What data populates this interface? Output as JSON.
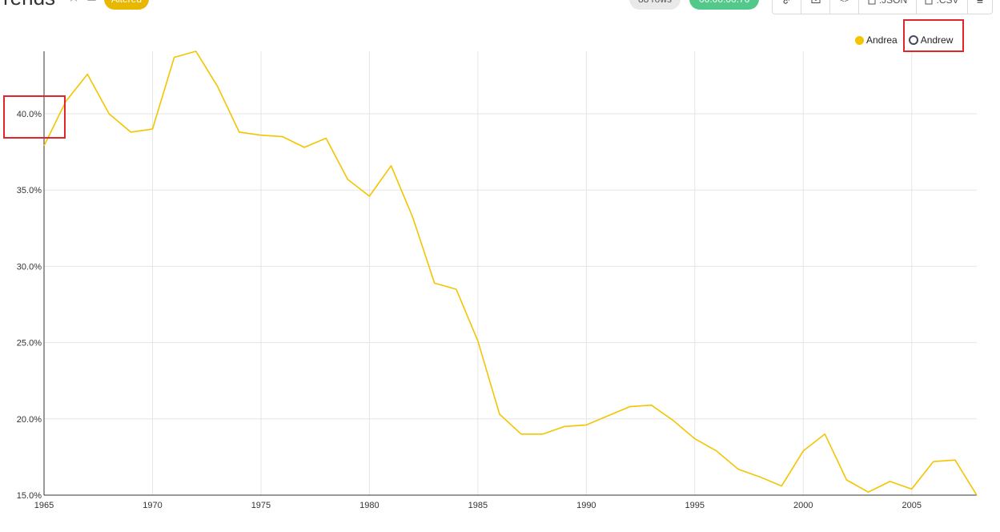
{
  "header": {
    "title": "rends",
    "altered_label": "Altered",
    "rows_label": "88 rows",
    "time_label": "00:00:00.70",
    "toolbar": [
      {
        "icon": "link-icon",
        "label": ""
      },
      {
        "icon": "mail-icon",
        "label": ""
      },
      {
        "icon": "code-icon",
        "label": ""
      },
      {
        "icon": "json-file-icon",
        "label": ".JSON"
      },
      {
        "icon": "csv-file-icon",
        "label": ".CSV"
      },
      {
        "icon": "menu-icon",
        "label": ""
      }
    ]
  },
  "legend": [
    {
      "name": "Andrea",
      "color": "#f4c400",
      "active": true
    },
    {
      "name": "Andrew",
      "color": "#45485a",
      "active": false
    }
  ],
  "chart_data": {
    "type": "line",
    "series": [
      {
        "name": "Andrea",
        "color": "#f4c400",
        "x": [
          1965,
          1966,
          1967,
          1968,
          1969,
          1970,
          1971,
          1972,
          1973,
          1974,
          1975,
          1976,
          1977,
          1978,
          1979,
          1980,
          1981,
          1982,
          1983,
          1984,
          1985,
          1986,
          1987,
          1988,
          1989,
          1990,
          1991,
          1992,
          1993,
          1994,
          1995,
          1996,
          1997,
          1998,
          1999,
          2000,
          2001,
          2002,
          2003,
          2004,
          2005,
          2006,
          2007,
          2008
        ],
        "y": [
          37.9,
          40.8,
          42.6,
          40.0,
          38.8,
          39.0,
          43.7,
          44.1,
          41.8,
          38.8,
          38.6,
          38.5,
          37.8,
          38.4,
          35.7,
          34.6,
          36.6,
          33.2,
          28.9,
          28.5,
          25.1,
          20.3,
          19.0,
          19.0,
          19.5,
          19.6,
          20.2,
          20.8,
          20.9,
          19.9,
          18.7,
          17.9,
          16.7,
          16.2,
          15.6,
          17.9,
          19.0,
          16.0,
          15.2,
          15.9,
          15.4,
          17.2,
          17.3,
          15.0
        ]
      }
    ],
    "x_ticks": [
      1965,
      1970,
      1975,
      1980,
      1985,
      1990,
      1995,
      2000,
      2005
    ],
    "y_ticks": [
      15,
      20,
      25,
      30,
      35,
      40
    ],
    "y_tick_labels": [
      "15.0%",
      "20.0%",
      "25.0%",
      "30.0%",
      "35.0%",
      "40.0%"
    ],
    "xlim": [
      1965,
      2008
    ],
    "ylim": [
      15,
      44.1
    ],
    "grid": true,
    "legend_position": "top-right"
  }
}
